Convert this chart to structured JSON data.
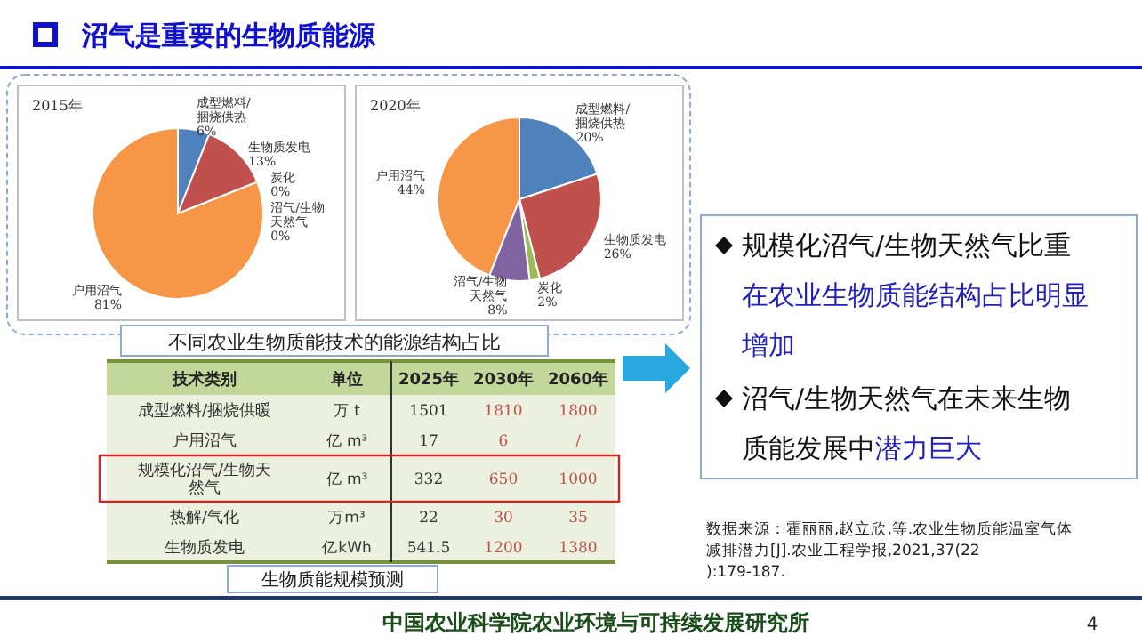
{
  "chart_data": [
    {
      "type": "pie",
      "title": "2015年",
      "categories": [
        "成型燃料/捆烧供热",
        "生物质发电",
        "炭化",
        "沼气/生物天然气",
        "户用沼气"
      ],
      "values": [
        6,
        13,
        0,
        0,
        81
      ],
      "colors": [
        "#4f81bd",
        "#c0504d",
        "#9bbb59",
        "#8064a2",
        "#f79646"
      ],
      "value_labels": [
        "6%",
        "13%",
        "0%",
        "0%",
        "81%"
      ]
    },
    {
      "type": "pie",
      "title": "2020年",
      "categories": [
        "成型燃料/捆烧供热",
        "生物质发电",
        "炭化",
        "沼气/生物天然气",
        "户用沼气"
      ],
      "values": [
        20,
        26,
        2,
        8,
        44
      ],
      "colors": [
        "#4f81bd",
        "#c0504d",
        "#9bbb59",
        "#8064a2",
        "#f79646"
      ],
      "value_labels": [
        "20%",
        "26%",
        "2%",
        "8%",
        "44%"
      ]
    },
    {
      "type": "other",
      "title": "生物质能规模预测",
      "categories": [
        "技术类别",
        "单位",
        "2025年",
        "2030年",
        "2060年"
      ],
      "cell_labels": [
        [
          "成型燃料/捆烧供暖",
          "万 t",
          "1501",
          "1810",
          "1800"
        ],
        [
          "户用沼气",
          "亿 m³",
          "17",
          "6",
          "/"
        ],
        [
          "规模化沼气/生物天然气",
          "亿 m³",
          "332",
          "650",
          "1000"
        ],
        [
          "热解/气化",
          "万m³",
          "22",
          "30",
          "35"
        ],
        [
          "生物质发电",
          "亿kWh",
          "541.5",
          "1200",
          "1380"
        ]
      ],
      "annotations": [
        "沼气是重要的生物质能源",
        "不同农业生物质能技术的能源结构占比",
        "规模化沼气/生物天然气比重",
        "在农业生物质能结构占比明显增加",
        "沼气/生物天然气在未来生物质能发展中",
        "潜力巨大",
        "数据来源：霍丽丽,赵立欣,等.农业生物质能温室气体减排潜力[J].农业工程学报,2021,37(22):179-187.",
        "中国农业科学院农业环境与可持续发展研究所",
        "4"
      ]
    }
  ]
}
